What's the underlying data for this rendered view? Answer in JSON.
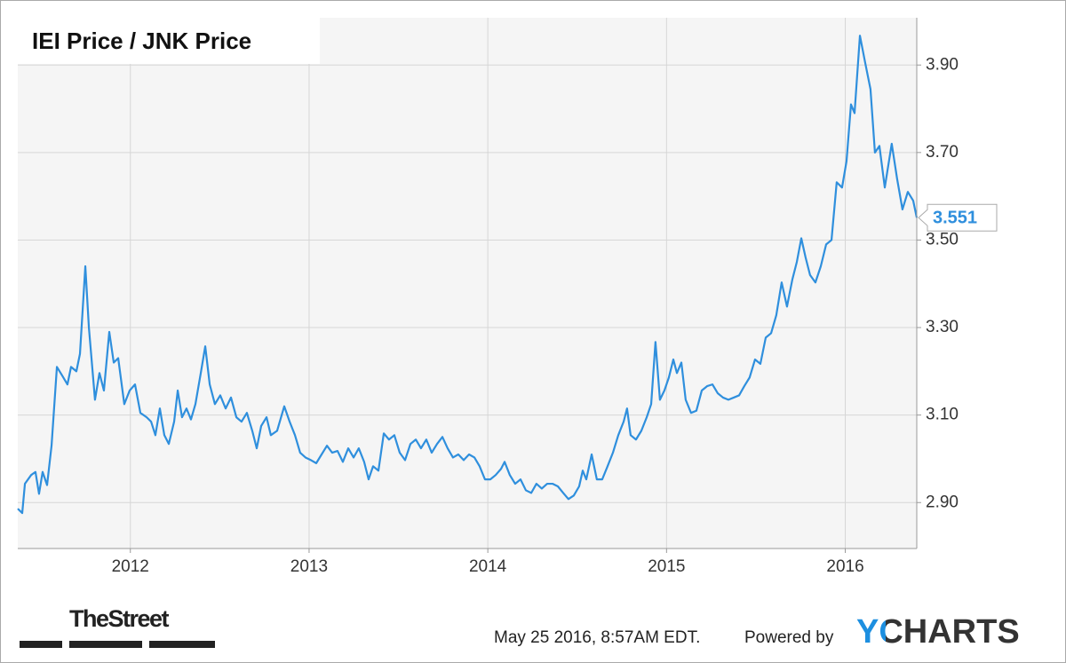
{
  "chart_data": {
    "type": "line",
    "title": "IEI Price / JNK Price",
    "x": [
      2011.37,
      2011.395,
      2011.41,
      2011.445,
      2011.469,
      2011.489,
      2011.509,
      2011.534,
      2011.559,
      2011.589,
      2011.619,
      2011.648,
      2011.668,
      2011.698,
      2011.718,
      2011.748,
      2011.768,
      2011.802,
      2011.827,
      2011.852,
      2011.882,
      2011.907,
      2011.932,
      2011.966,
      2011.996,
      2012.026,
      2012.056,
      2012.091,
      2012.116,
      2012.14,
      2012.165,
      2012.19,
      2012.215,
      2012.245,
      2012.265,
      2012.289,
      2012.314,
      2012.339,
      2012.364,
      2012.394,
      2012.419,
      2012.444,
      2012.473,
      2012.503,
      2012.533,
      2012.563,
      2012.593,
      2012.622,
      2012.652,
      2012.682,
      2012.707,
      2012.732,
      2012.762,
      2012.786,
      2012.821,
      2012.861,
      2012.891,
      2012.921,
      2012.95,
      2012.98,
      2013.01,
      2013.04,
      2013.07,
      2013.1,
      2013.129,
      2013.159,
      2013.189,
      2013.219,
      2013.249,
      2013.278,
      2013.308,
      2013.333,
      2013.358,
      2013.388,
      2013.418,
      2013.447,
      2013.477,
      2013.507,
      2013.537,
      2013.567,
      2013.597,
      2013.626,
      2013.656,
      2013.686,
      2013.716,
      2013.746,
      2013.775,
      2013.805,
      2013.835,
      2013.865,
      2013.895,
      2013.925,
      2013.954,
      2013.984,
      2014.014,
      2014.044,
      2014.074,
      2014.094,
      2014.123,
      2014.153,
      2014.183,
      2014.213,
      2014.243,
      2014.272,
      2014.302,
      2014.332,
      2014.362,
      2014.392,
      2014.422,
      2014.451,
      2014.481,
      2014.511,
      2014.531,
      2014.551,
      2014.581,
      2014.61,
      2014.64,
      2014.67,
      2014.7,
      2014.73,
      2014.76,
      2014.779,
      2014.799,
      2014.829,
      2014.859,
      2014.889,
      2014.914,
      2014.938,
      2014.963,
      2014.988,
      2015.013,
      2015.038,
      2015.058,
      2015.083,
      2015.107,
      2015.137,
      2015.167,
      2015.197,
      2015.227,
      2015.257,
      2015.286,
      2015.316,
      2015.346,
      2015.376,
      2015.406,
      2015.435,
      2015.465,
      2015.495,
      2015.525,
      2015.555,
      2015.585,
      2015.614,
      2015.644,
      2015.674,
      2015.704,
      2015.729,
      2015.754,
      2015.778,
      2015.803,
      2015.833,
      2015.863,
      2015.893,
      2015.923,
      2015.952,
      2015.982,
      2016.007,
      2016.032,
      2016.052,
      2016.082,
      2016.111,
      2016.141,
      2016.166,
      2016.191,
      2016.221,
      2016.26,
      2016.29,
      2016.32,
      2016.35,
      2016.38,
      2016.4
    ],
    "values": [
      2.886,
      2.876,
      2.943,
      2.963,
      2.97,
      2.92,
      2.97,
      2.94,
      3.03,
      3.21,
      3.19,
      3.17,
      3.21,
      3.2,
      3.24,
      3.44,
      3.3,
      3.135,
      3.196,
      3.156,
      3.29,
      3.22,
      3.23,
      3.125,
      3.156,
      3.17,
      3.105,
      3.095,
      3.085,
      3.054,
      3.115,
      3.054,
      3.034,
      3.085,
      3.156,
      3.095,
      3.115,
      3.09,
      3.125,
      3.196,
      3.257,
      3.17,
      3.125,
      3.145,
      3.115,
      3.14,
      3.095,
      3.085,
      3.105,
      3.064,
      3.024,
      3.075,
      3.095,
      3.054,
      3.064,
      3.12,
      3.085,
      3.054,
      3.014,
      3.003,
      2.997,
      2.99,
      3.01,
      3.03,
      3.014,
      3.018,
      2.993,
      3.024,
      3.003,
      3.024,
      2.993,
      2.953,
      2.983,
      2.973,
      3.058,
      3.044,
      3.054,
      3.014,
      2.997,
      3.034,
      3.044,
      3.024,
      3.044,
      3.014,
      3.034,
      3.05,
      3.024,
      3.003,
      3.01,
      2.997,
      3.01,
      3.003,
      2.983,
      2.953,
      2.953,
      2.963,
      2.977,
      2.993,
      2.963,
      2.943,
      2.953,
      2.928,
      2.922,
      2.943,
      2.932,
      2.943,
      2.943,
      2.937,
      2.922,
      2.908,
      2.916,
      2.937,
      2.973,
      2.953,
      3.01,
      2.953,
      2.953,
      2.983,
      3.014,
      3.054,
      3.085,
      3.115,
      3.054,
      3.044,
      3.064,
      3.095,
      3.125,
      3.267,
      3.135,
      3.156,
      3.186,
      3.227,
      3.196,
      3.22,
      3.135,
      3.105,
      3.11,
      3.156,
      3.166,
      3.17,
      3.15,
      3.14,
      3.135,
      3.14,
      3.145,
      3.166,
      3.186,
      3.227,
      3.217,
      3.277,
      3.287,
      3.328,
      3.403,
      3.348,
      3.41,
      3.45,
      3.504,
      3.46,
      3.42,
      3.403,
      3.44,
      3.49,
      3.5,
      3.632,
      3.62,
      3.68,
      3.81,
      3.79,
      3.967,
      3.906,
      3.845,
      3.7,
      3.715,
      3.62,
      3.72,
      3.64,
      3.57,
      3.61,
      3.59,
      3.551
    ],
    "color": "#2f8fdd",
    "xlim": [
      2011.37,
      2016.4
    ],
    "xticks": [
      2012,
      2013,
      2014,
      2015,
      2016
    ],
    "ylim": [
      2.795,
      4.008
    ],
    "yticks": [
      {
        "value": 2.9,
        "label": "2.90"
      },
      {
        "value": 3.1,
        "label": "3.10"
      },
      {
        "value": 3.3,
        "label": "3.30"
      },
      {
        "value": 3.5,
        "label": "3.50"
      },
      {
        "value": 3.7,
        "label": "3.70"
      },
      {
        "value": 3.9,
        "label": "3.90"
      }
    ],
    "grid": true,
    "source_logo": "TheStreet",
    "timestamp": "May 25 2016, 8:57AM EDT.",
    "powered_by": "Powered by",
    "brand": "YCHARTS"
  }
}
